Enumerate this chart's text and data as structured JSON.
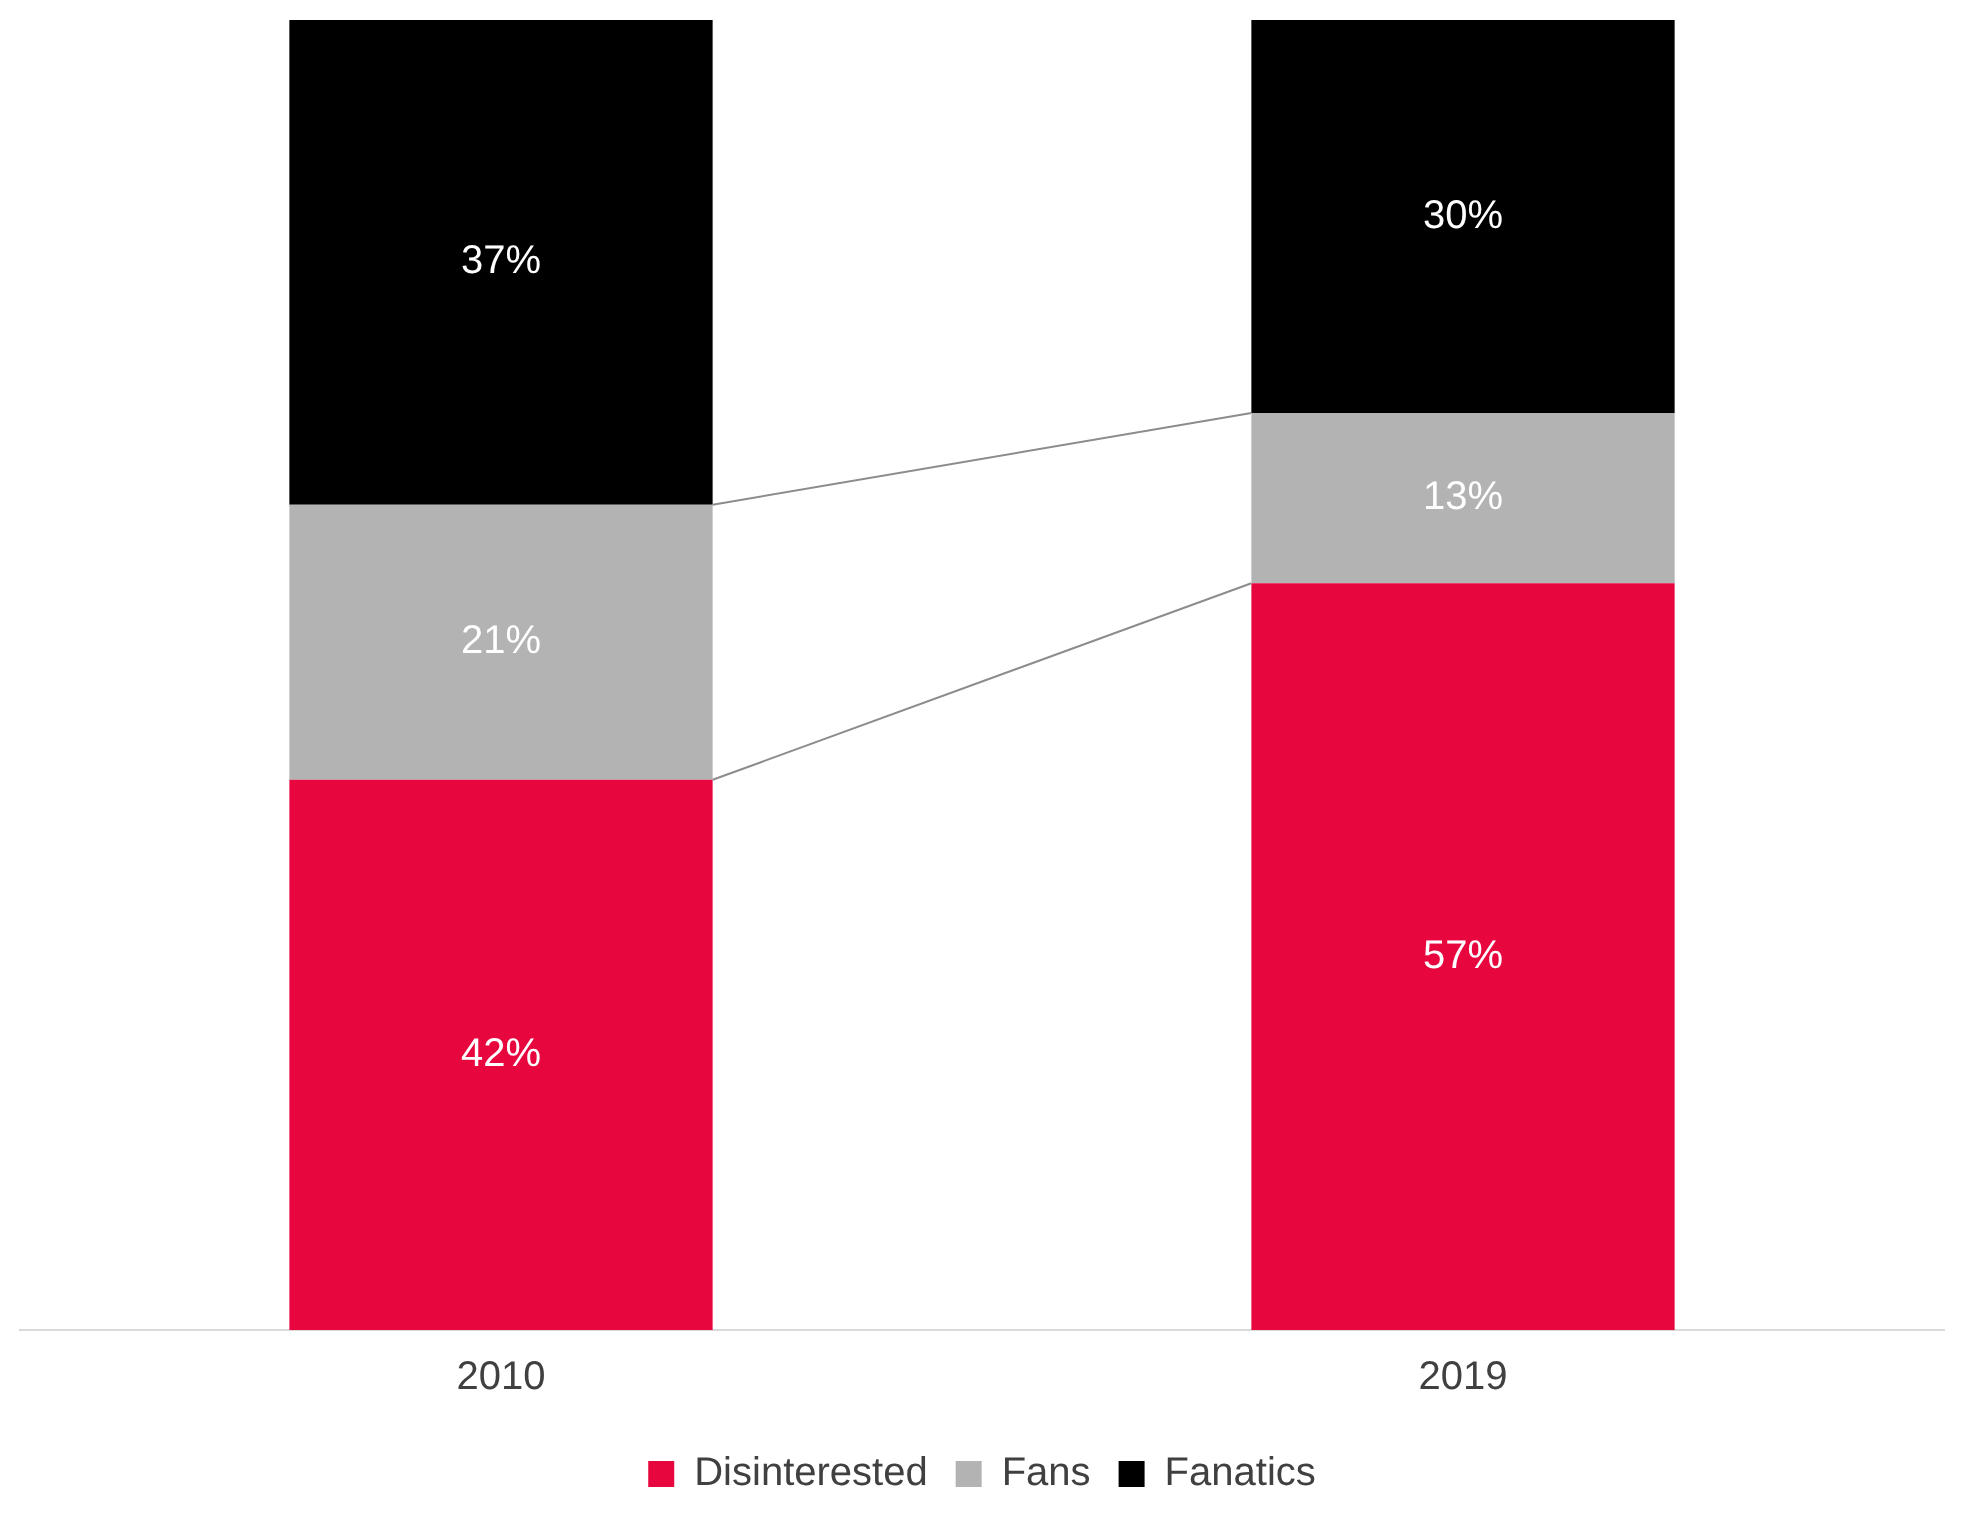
{
  "chart_data": {
    "type": "bar",
    "stacked": true,
    "categories": [
      "2010",
      "2019"
    ],
    "series": [
      {
        "name": "Disinterested",
        "color": "#e8063f",
        "values": [
          42,
          57
        ],
        "value_labels": [
          "42%",
          "57%"
        ]
      },
      {
        "name": "Fans",
        "color": "#b3b3b3",
        "values": [
          21,
          13
        ],
        "value_labels": [
          "21%",
          "13%"
        ]
      },
      {
        "name": "Fanatics",
        "color": "#000000",
        "values": [
          37,
          30
        ],
        "value_labels": [
          "37%",
          "30%"
        ]
      }
    ],
    "tick_labels": "x",
    "grid": false,
    "legend": "bottom"
  }
}
